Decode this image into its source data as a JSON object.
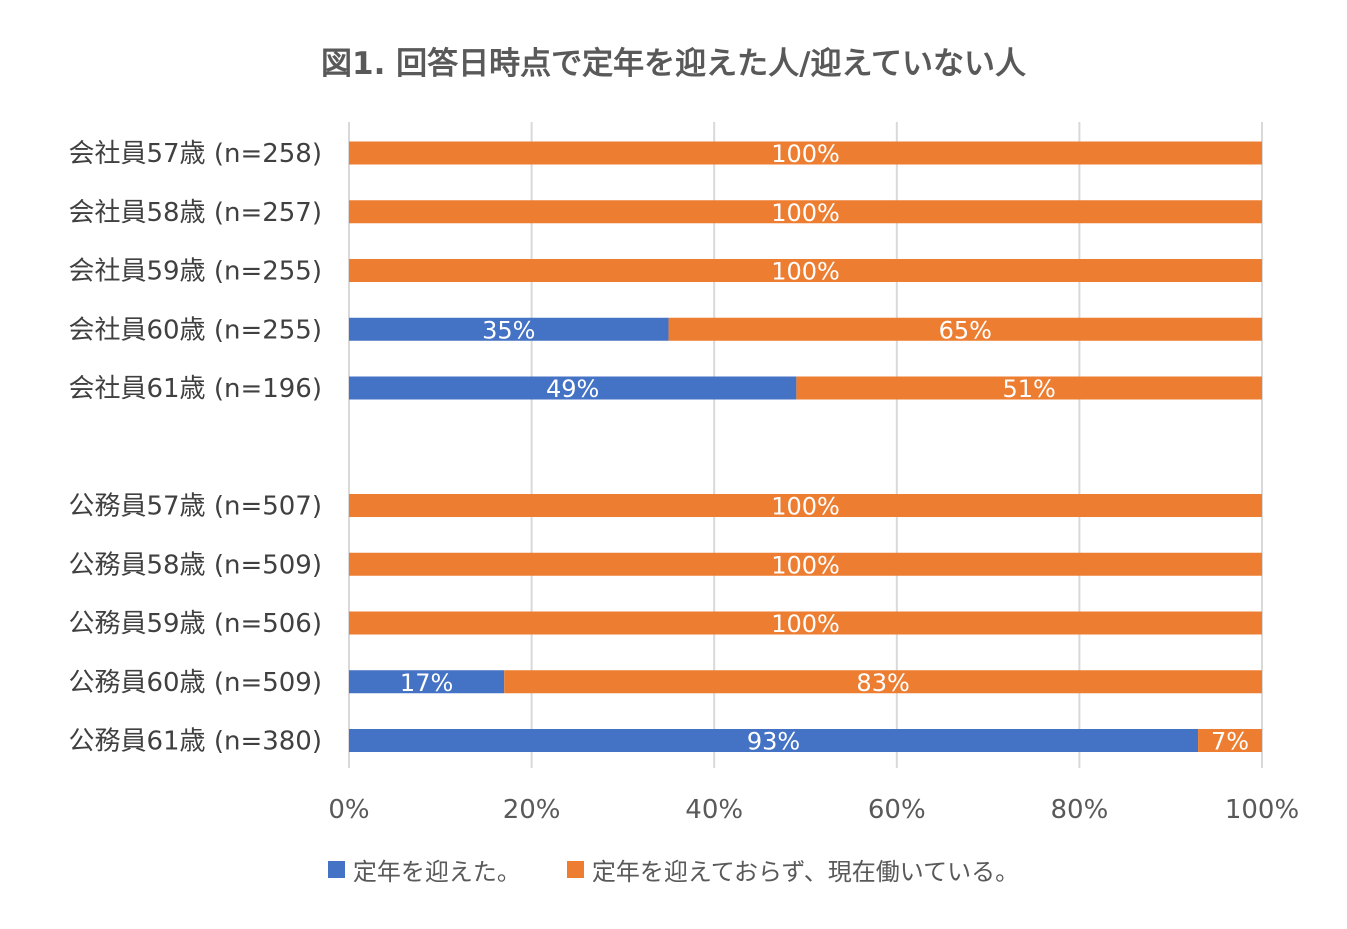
{
  "chart_data": {
    "type": "bar",
    "orientation": "horizontal",
    "stacked": true,
    "title": "図1. 回答日時点で定年を迎えた人/迎えていない人",
    "categories": [
      "会社員57歳 (n=258)",
      "会社員58歳 (n=257)",
      "会社員59歳 (n=255)",
      "会社員60歳 (n=255)",
      "会社員61歳 (n=196)",
      "",
      "公務員57歳 (n=507)",
      "公務員58歳 (n=509)",
      "公務員59歳 (n=506)",
      "公務員60歳 (n=509)",
      "公務員61歳 (n=380)"
    ],
    "series": [
      {
        "name": "定年を迎えた。",
        "color": "#4472C4",
        "values": [
          0,
          0,
          0,
          35,
          49,
          null,
          0,
          0,
          0,
          17,
          93
        ],
        "labels": [
          "",
          "",
          "",
          "35%",
          "49%",
          "",
          "",
          "",
          "",
          "17%",
          "93%"
        ]
      },
      {
        "name": "定年を迎えておらず、現在働いている。",
        "color": "#ED7D31",
        "values": [
          100,
          100,
          100,
          65,
          51,
          null,
          100,
          100,
          100,
          83,
          7
        ],
        "labels": [
          "100%",
          "100%",
          "100%",
          "65%",
          "51%",
          "",
          "100%",
          "100%",
          "100%",
          "83%",
          "7%"
        ]
      }
    ],
    "x_ticks": [
      "0%",
      "20%",
      "40%",
      "60%",
      "80%",
      "100%"
    ],
    "xlim": [
      0,
      100
    ],
    "grid": true,
    "legend_position": "bottom"
  }
}
